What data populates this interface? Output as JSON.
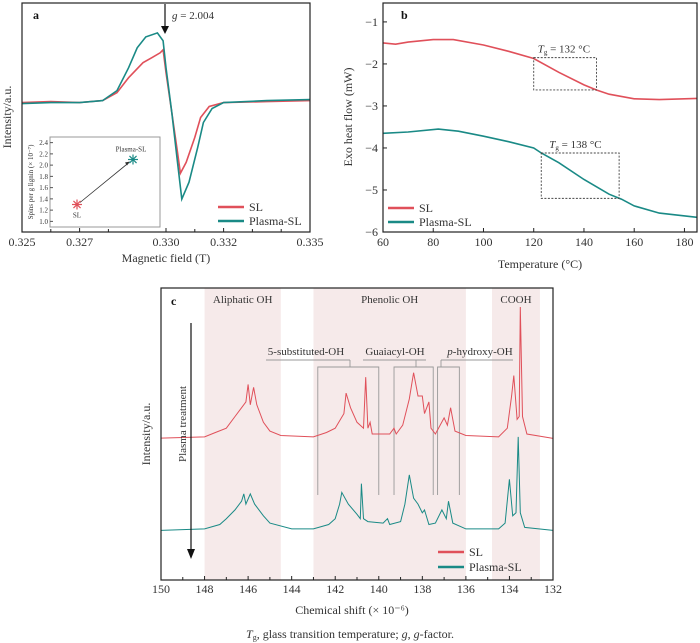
{
  "colors": {
    "SL": "#e0505a",
    "Plasma-SL": "#1a8a86",
    "band": "#f6eaea"
  },
  "caption": {
    "tg_symbol": "T",
    "tg_sub": "g",
    "rest1": ", glass transition temperature; ",
    "g_symbol": "g",
    "rest2": ", ",
    "g_symbol2": "g",
    "rest3": "-factor."
  },
  "chart_data": [
    {
      "panel": "a",
      "type": "line",
      "xlabel": "Magnetic field (T)",
      "ylabel": "Intensity/a.u.",
      "xlim": [
        0.325,
        0.335
      ],
      "xticks": [
        "0.325",
        "0.327",
        "0.330",
        "0.332",
        "0.335"
      ],
      "annotation": "g = 2.004",
      "annotation_at": 0.33,
      "legend": "bottom-right",
      "series": [
        {
          "name": "SL",
          "points": [
            [
              0.325,
              0
            ],
            [
              0.326,
              0.01
            ],
            [
              0.327,
              0
            ],
            [
              0.3278,
              0.02
            ],
            [
              0.3283,
              0.1
            ],
            [
              0.3287,
              0.25
            ],
            [
              0.3292,
              0.4
            ],
            [
              0.3295,
              0.45
            ],
            [
              0.3298,
              0.5
            ],
            [
              0.3299,
              0.53
            ],
            [
              0.33,
              0.3
            ],
            [
              0.3302,
              -0.1
            ],
            [
              0.3304,
              -0.5
            ],
            [
              0.3305,
              -0.71
            ],
            [
              0.3307,
              -0.6
            ],
            [
              0.331,
              -0.35
            ],
            [
              0.3312,
              -0.15
            ],
            [
              0.3315,
              -0.04
            ],
            [
              0.332,
              0
            ],
            [
              0.3335,
              0.01
            ],
            [
              0.335,
              0.02
            ]
          ]
        },
        {
          "name": "Plasma-SL",
          "points": [
            [
              0.325,
              -0.01
            ],
            [
              0.326,
              0
            ],
            [
              0.327,
              0
            ],
            [
              0.3278,
              0.02
            ],
            [
              0.3283,
              0.12
            ],
            [
              0.3287,
              0.35
            ],
            [
              0.329,
              0.55
            ],
            [
              0.3293,
              0.66
            ],
            [
              0.3297,
              0.7
            ],
            [
              0.3299,
              0.62
            ],
            [
              0.33,
              0.35
            ],
            [
              0.3302,
              -0.1
            ],
            [
              0.3304,
              -0.6
            ],
            [
              0.33055,
              -0.97
            ],
            [
              0.3308,
              -0.8
            ],
            [
              0.3311,
              -0.45
            ],
            [
              0.3313,
              -0.2
            ],
            [
              0.3316,
              -0.06
            ],
            [
              0.332,
              0
            ],
            [
              0.3335,
              0.02
            ],
            [
              0.335,
              0.03
            ]
          ]
        }
      ],
      "inset": {
        "ylabel": "Spins per g lignin (× 10⁻⁷)",
        "ylim": [
          0.9,
          2.5
        ],
        "yticks": [
          "1.0",
          "1.2",
          "1.4",
          "1.6",
          "1.8",
          "2.0",
          "2.2",
          "2.4"
        ],
        "points": [
          {
            "name": "SL",
            "value": 1.3
          },
          {
            "name": "Plasma-SL",
            "value": 2.1
          }
        ]
      }
    },
    {
      "panel": "b",
      "type": "line",
      "xlabel": "Temperature (°C)",
      "ylabel": "Exo heat flow (mW)",
      "xlim": [
        60,
        185
      ],
      "ylim": [
        -6,
        -0.55
      ],
      "xticks": [
        "60",
        "80",
        "100",
        "120",
        "140",
        "160",
        "180"
      ],
      "yticks": [
        "-1",
        "-2",
        "-3",
        "-4",
        "-5",
        "-6"
      ],
      "legend": "bottom-left",
      "series": [
        {
          "name": "SL",
          "points": [
            [
              60,
              -1.5
            ],
            [
              65,
              -1.53
            ],
            [
              70,
              -1.48
            ],
            [
              80,
              -1.42
            ],
            [
              88,
              -1.42
            ],
            [
              100,
              -1.55
            ],
            [
              110,
              -1.7
            ],
            [
              120,
              -1.87
            ],
            [
              130,
              -2.2
            ],
            [
              140,
              -2.5
            ],
            [
              145,
              -2.62
            ],
            [
              150,
              -2.72
            ],
            [
              160,
              -2.83
            ],
            [
              170,
              -2.85
            ],
            [
              185,
              -2.82
            ]
          ],
          "tg_label": "= 132 °C",
          "tg_box": [
            120,
            145,
            -1.85,
            -2.62
          ]
        },
        {
          "name": "Plasma-SL",
          "points": [
            [
              60,
              -3.65
            ],
            [
              70,
              -3.62
            ],
            [
              82,
              -3.55
            ],
            [
              90,
              -3.6
            ],
            [
              100,
              -3.72
            ],
            [
              110,
              -3.85
            ],
            [
              120,
              -4.0
            ],
            [
              123,
              -4.12
            ],
            [
              130,
              -4.35
            ],
            [
              140,
              -4.75
            ],
            [
              150,
              -5.1
            ],
            [
              155,
              -5.22
            ],
            [
              160,
              -5.38
            ],
            [
              170,
              -5.55
            ],
            [
              185,
              -5.65
            ]
          ],
          "tg_label": "= 138 °C",
          "tg_box": [
            123,
            154,
            -4.12,
            -5.2
          ]
        }
      ]
    },
    {
      "panel": "c",
      "type": "line",
      "xlabel": "Chemical shift (× 10⁻⁶)",
      "ylabel": "Intensity/a.u.",
      "xlim": [
        150,
        132
      ],
      "xticks": [
        "150",
        "148",
        "146",
        "144",
        "142",
        "140",
        "138",
        "136",
        "134",
        "132"
      ],
      "arrow_label": "Plasma treatment",
      "regions": [
        {
          "label": "Aliphatic OH",
          "range": [
            148,
            144.5
          ]
        },
        {
          "label": "Phenolic OH",
          "range": [
            143,
            136
          ]
        },
        {
          "label": "COOH",
          "range": [
            134.8,
            132.6
          ]
        }
      ],
      "sub_regions": [
        {
          "label": "5-substituted-OH",
          "range": [
            142.8,
            140.0
          ]
        },
        {
          "label": "Guaiacyl-OH",
          "range": [
            139.3,
            137.5
          ]
        },
        {
          "label_italic": "p",
          "label": "-hydroxy-OH",
          "range": [
            137.3,
            136.3
          ]
        }
      ],
      "legend": "bottom-right",
      "series": [
        {
          "name": "SL",
          "points": [
            [
              150,
              4.86
            ],
            [
              148,
              4.9
            ],
            [
              147.5,
              5.05
            ],
            [
              147,
              5.2
            ],
            [
              146.6,
              5.6
            ],
            [
              146.3,
              5.9
            ],
            [
              146.1,
              6.1
            ],
            [
              146.0,
              6.7
            ],
            [
              145.9,
              6.0
            ],
            [
              145.75,
              6.6
            ],
            [
              145.6,
              6.0
            ],
            [
              145.3,
              5.4
            ],
            [
              145,
              5.1
            ],
            [
              144.5,
              4.95
            ],
            [
              143,
              4.9
            ],
            [
              142.4,
              5.05
            ],
            [
              142,
              5.2
            ],
            [
              141.6,
              5.7
            ],
            [
              141.5,
              6.4
            ],
            [
              141.3,
              5.9
            ],
            [
              141,
              5.4
            ],
            [
              140.7,
              5.2
            ],
            [
              140.6,
              6.95
            ],
            [
              140.5,
              5.2
            ],
            [
              140.4,
              5.4
            ],
            [
              140.3,
              5.0
            ],
            [
              139.5,
              5.0
            ],
            [
              139.3,
              5.2
            ],
            [
              139.2,
              5.0
            ],
            [
              138.9,
              5.3
            ],
            [
              138.6,
              6.2
            ],
            [
              138.4,
              7.1
            ],
            [
              138.2,
              6.3
            ],
            [
              138.0,
              6.3
            ],
            [
              137.9,
              5.7
            ],
            [
              137.7,
              6.1
            ],
            [
              137.6,
              5.2
            ],
            [
              137.4,
              5.0
            ],
            [
              137.0,
              5.55
            ],
            [
              136.85,
              5.3
            ],
            [
              136.7,
              5.9
            ],
            [
              136.5,
              5.1
            ],
            [
              136,
              4.95
            ],
            [
              134.5,
              4.9
            ],
            [
              134.1,
              5.2
            ],
            [
              133.9,
              6.3
            ],
            [
              133.8,
              7.0
            ],
            [
              133.65,
              5.5
            ],
            [
              133.55,
              5.6
            ],
            [
              133.5,
              9.35
            ],
            [
              133.4,
              5.6
            ],
            [
              133.2,
              5.0
            ],
            [
              132,
              4.85
            ]
          ]
        },
        {
          "name": "Plasma-SL",
          "points": [
            [
              150,
              1.7
            ],
            [
              148,
              1.75
            ],
            [
              147.3,
              1.9
            ],
            [
              147,
              2.1
            ],
            [
              146.6,
              2.4
            ],
            [
              146.3,
              2.7
            ],
            [
              146.2,
              2.95
            ],
            [
              146.1,
              2.6
            ],
            [
              145.9,
              2.95
            ],
            [
              145.7,
              2.6
            ],
            [
              145.3,
              2.2
            ],
            [
              145,
              1.95
            ],
            [
              144,
              1.75
            ],
            [
              143,
              1.75
            ],
            [
              142.3,
              1.9
            ],
            [
              142,
              2.1
            ],
            [
              141.8,
              2.6
            ],
            [
              141.7,
              3.0
            ],
            [
              141.4,
              2.6
            ],
            [
              141,
              2.25
            ],
            [
              140.85,
              2.1
            ],
            [
              140.8,
              3.3
            ],
            [
              140.7,
              2.1
            ],
            [
              140.5,
              2.0
            ],
            [
              139.8,
              1.95
            ],
            [
              139.6,
              2.1
            ],
            [
              139.5,
              1.9
            ],
            [
              139,
              2.0
            ],
            [
              138.8,
              2.6
            ],
            [
              138.6,
              3.6
            ],
            [
              138.4,
              2.8
            ],
            [
              138.2,
              2.6
            ],
            [
              138.0,
              2.3
            ],
            [
              137.9,
              2.4
            ],
            [
              137.7,
              1.9
            ],
            [
              137.4,
              1.95
            ],
            [
              137.1,
              2.4
            ],
            [
              136.9,
              2.1
            ],
            [
              136.8,
              2.7
            ],
            [
              136.6,
              1.95
            ],
            [
              136,
              1.75
            ],
            [
              134.5,
              1.75
            ],
            [
              134.2,
              1.95
            ],
            [
              134.0,
              3.45
            ],
            [
              133.85,
              2.2
            ],
            [
              133.7,
              2.3
            ],
            [
              133.6,
              4.9
            ],
            [
              133.5,
              2.3
            ],
            [
              133.3,
              1.8
            ],
            [
              132,
              1.7
            ]
          ]
        }
      ]
    }
  ]
}
